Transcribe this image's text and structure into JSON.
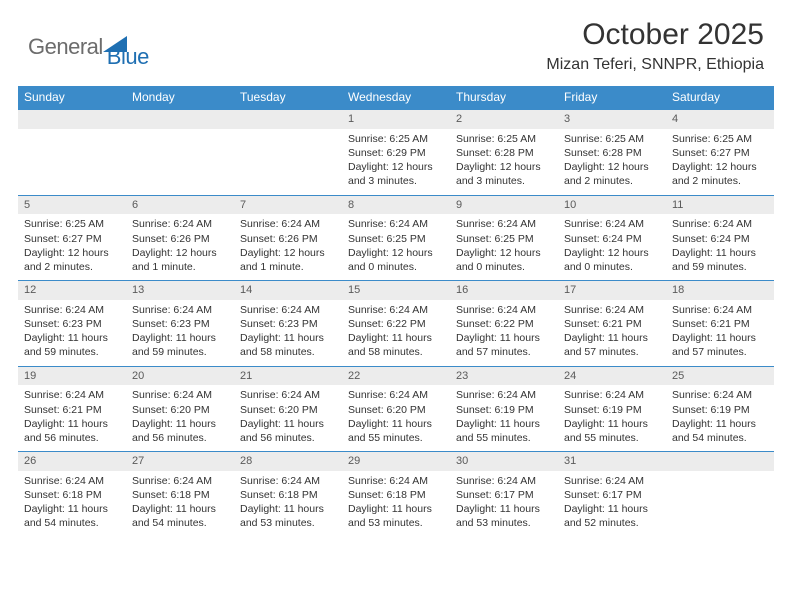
{
  "logo": {
    "text_general": "General",
    "text_blue": "Blue"
  },
  "title": "October 2025",
  "location": "Mizan Teferi, SNNPR, Ethiopia",
  "colors": {
    "header_bg": "#3b8bc9",
    "header_text": "#ffffff",
    "daynum_bg": "#ececec",
    "daynum_text": "#5a5a5a",
    "divider": "#3b8bc9",
    "logo_gray": "#6c6c6c",
    "logo_blue": "#1f6fb2",
    "body_text": "#333333",
    "background": "#ffffff"
  },
  "weekdays": [
    "Sunday",
    "Monday",
    "Tuesday",
    "Wednesday",
    "Thursday",
    "Friday",
    "Saturday"
  ],
  "weeks": [
    [
      {
        "n": "",
        "sunrise": "",
        "sunset": "",
        "daylight": ""
      },
      {
        "n": "",
        "sunrise": "",
        "sunset": "",
        "daylight": ""
      },
      {
        "n": "",
        "sunrise": "",
        "sunset": "",
        "daylight": ""
      },
      {
        "n": "1",
        "sunrise": "Sunrise: 6:25 AM",
        "sunset": "Sunset: 6:29 PM",
        "daylight": "Daylight: 12 hours and 3 minutes."
      },
      {
        "n": "2",
        "sunrise": "Sunrise: 6:25 AM",
        "sunset": "Sunset: 6:28 PM",
        "daylight": "Daylight: 12 hours and 3 minutes."
      },
      {
        "n": "3",
        "sunrise": "Sunrise: 6:25 AM",
        "sunset": "Sunset: 6:28 PM",
        "daylight": "Daylight: 12 hours and 2 minutes."
      },
      {
        "n": "4",
        "sunrise": "Sunrise: 6:25 AM",
        "sunset": "Sunset: 6:27 PM",
        "daylight": "Daylight: 12 hours and 2 minutes."
      }
    ],
    [
      {
        "n": "5",
        "sunrise": "Sunrise: 6:25 AM",
        "sunset": "Sunset: 6:27 PM",
        "daylight": "Daylight: 12 hours and 2 minutes."
      },
      {
        "n": "6",
        "sunrise": "Sunrise: 6:24 AM",
        "sunset": "Sunset: 6:26 PM",
        "daylight": "Daylight: 12 hours and 1 minute."
      },
      {
        "n": "7",
        "sunrise": "Sunrise: 6:24 AM",
        "sunset": "Sunset: 6:26 PM",
        "daylight": "Daylight: 12 hours and 1 minute."
      },
      {
        "n": "8",
        "sunrise": "Sunrise: 6:24 AM",
        "sunset": "Sunset: 6:25 PM",
        "daylight": "Daylight: 12 hours and 0 minutes."
      },
      {
        "n": "9",
        "sunrise": "Sunrise: 6:24 AM",
        "sunset": "Sunset: 6:25 PM",
        "daylight": "Daylight: 12 hours and 0 minutes."
      },
      {
        "n": "10",
        "sunrise": "Sunrise: 6:24 AM",
        "sunset": "Sunset: 6:24 PM",
        "daylight": "Daylight: 12 hours and 0 minutes."
      },
      {
        "n": "11",
        "sunrise": "Sunrise: 6:24 AM",
        "sunset": "Sunset: 6:24 PM",
        "daylight": "Daylight: 11 hours and 59 minutes."
      }
    ],
    [
      {
        "n": "12",
        "sunrise": "Sunrise: 6:24 AM",
        "sunset": "Sunset: 6:23 PM",
        "daylight": "Daylight: 11 hours and 59 minutes."
      },
      {
        "n": "13",
        "sunrise": "Sunrise: 6:24 AM",
        "sunset": "Sunset: 6:23 PM",
        "daylight": "Daylight: 11 hours and 59 minutes."
      },
      {
        "n": "14",
        "sunrise": "Sunrise: 6:24 AM",
        "sunset": "Sunset: 6:23 PM",
        "daylight": "Daylight: 11 hours and 58 minutes."
      },
      {
        "n": "15",
        "sunrise": "Sunrise: 6:24 AM",
        "sunset": "Sunset: 6:22 PM",
        "daylight": "Daylight: 11 hours and 58 minutes."
      },
      {
        "n": "16",
        "sunrise": "Sunrise: 6:24 AM",
        "sunset": "Sunset: 6:22 PM",
        "daylight": "Daylight: 11 hours and 57 minutes."
      },
      {
        "n": "17",
        "sunrise": "Sunrise: 6:24 AM",
        "sunset": "Sunset: 6:21 PM",
        "daylight": "Daylight: 11 hours and 57 minutes."
      },
      {
        "n": "18",
        "sunrise": "Sunrise: 6:24 AM",
        "sunset": "Sunset: 6:21 PM",
        "daylight": "Daylight: 11 hours and 57 minutes."
      }
    ],
    [
      {
        "n": "19",
        "sunrise": "Sunrise: 6:24 AM",
        "sunset": "Sunset: 6:21 PM",
        "daylight": "Daylight: 11 hours and 56 minutes."
      },
      {
        "n": "20",
        "sunrise": "Sunrise: 6:24 AM",
        "sunset": "Sunset: 6:20 PM",
        "daylight": "Daylight: 11 hours and 56 minutes."
      },
      {
        "n": "21",
        "sunrise": "Sunrise: 6:24 AM",
        "sunset": "Sunset: 6:20 PM",
        "daylight": "Daylight: 11 hours and 56 minutes."
      },
      {
        "n": "22",
        "sunrise": "Sunrise: 6:24 AM",
        "sunset": "Sunset: 6:20 PM",
        "daylight": "Daylight: 11 hours and 55 minutes."
      },
      {
        "n": "23",
        "sunrise": "Sunrise: 6:24 AM",
        "sunset": "Sunset: 6:19 PM",
        "daylight": "Daylight: 11 hours and 55 minutes."
      },
      {
        "n": "24",
        "sunrise": "Sunrise: 6:24 AM",
        "sunset": "Sunset: 6:19 PM",
        "daylight": "Daylight: 11 hours and 55 minutes."
      },
      {
        "n": "25",
        "sunrise": "Sunrise: 6:24 AM",
        "sunset": "Sunset: 6:19 PM",
        "daylight": "Daylight: 11 hours and 54 minutes."
      }
    ],
    [
      {
        "n": "26",
        "sunrise": "Sunrise: 6:24 AM",
        "sunset": "Sunset: 6:18 PM",
        "daylight": "Daylight: 11 hours and 54 minutes."
      },
      {
        "n": "27",
        "sunrise": "Sunrise: 6:24 AM",
        "sunset": "Sunset: 6:18 PM",
        "daylight": "Daylight: 11 hours and 54 minutes."
      },
      {
        "n": "28",
        "sunrise": "Sunrise: 6:24 AM",
        "sunset": "Sunset: 6:18 PM",
        "daylight": "Daylight: 11 hours and 53 minutes."
      },
      {
        "n": "29",
        "sunrise": "Sunrise: 6:24 AM",
        "sunset": "Sunset: 6:18 PM",
        "daylight": "Daylight: 11 hours and 53 minutes."
      },
      {
        "n": "30",
        "sunrise": "Sunrise: 6:24 AM",
        "sunset": "Sunset: 6:17 PM",
        "daylight": "Daylight: 11 hours and 53 minutes."
      },
      {
        "n": "31",
        "sunrise": "Sunrise: 6:24 AM",
        "sunset": "Sunset: 6:17 PM",
        "daylight": "Daylight: 11 hours and 52 minutes."
      },
      {
        "n": "",
        "sunrise": "",
        "sunset": "",
        "daylight": ""
      }
    ]
  ]
}
